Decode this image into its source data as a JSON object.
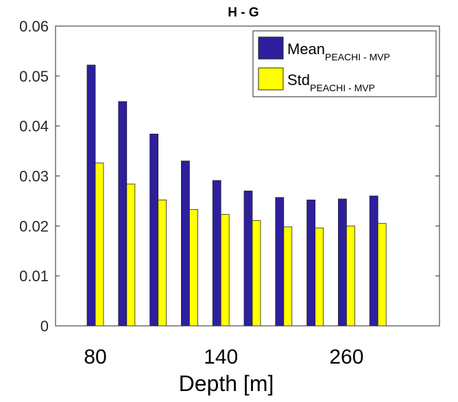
{
  "chart_data": {
    "type": "bar",
    "title": "H - G",
    "xlabel": "Depth [m]",
    "ylabel": "",
    "ylim": [
      0,
      0.06
    ],
    "yticks": [
      "0",
      "0.01",
      "0.02",
      "0.03",
      "0.04",
      "0.05",
      "0.06"
    ],
    "xtick_labels": [
      {
        "label": "80",
        "category_index": 0
      },
      {
        "label": "140",
        "category_index": 4
      },
      {
        "label": "260",
        "category_index": 8
      }
    ],
    "categories": [
      "",
      "",
      "",
      "",
      "",
      "",
      "",
      "",
      "",
      ""
    ],
    "series": [
      {
        "name": "Mean",
        "name_subscript": "PEACHI - MVP",
        "color": "#2e1f9e",
        "values": [
          0.0522,
          0.0449,
          0.0384,
          0.033,
          0.0291,
          0.027,
          0.0257,
          0.0252,
          0.0254,
          0.026
        ]
      },
      {
        "name": "Std",
        "name_subscript": "PEACHI - MVP",
        "color": "#ffff00",
        "values": [
          0.0326,
          0.0284,
          0.0252,
          0.0233,
          0.0223,
          0.0211,
          0.0198,
          0.0196,
          0.02,
          0.0205
        ]
      }
    ],
    "grid": false,
    "legend_position": "top-right"
  }
}
